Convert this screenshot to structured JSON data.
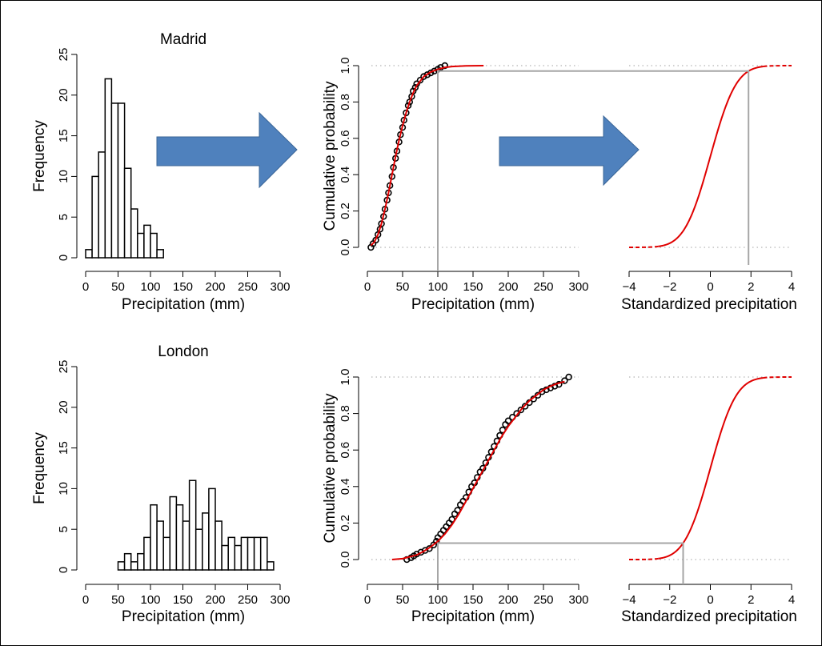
{
  "colors": {
    "bars_fill": "#ffffff",
    "bars_stroke": "#000000",
    "cdf_curve": "#e00000",
    "points": "#000000",
    "guide_lines": "#a6a6a6",
    "dotted_ref": "#b4b4b4",
    "arrow_fill": "#4f81bd",
    "arrow_stroke": "#3b6697"
  },
  "icons": [
    "right-arrow-icon",
    "right-arrow-icon"
  ],
  "chart_data": [
    {
      "type": "bar",
      "title": "Madrid",
      "xlabel": "Precipitation (mm)",
      "ylabel": "Frequency",
      "bin_width": 10,
      "bin_starts": [
        0,
        10,
        20,
        30,
        40,
        50,
        60,
        70,
        80,
        90,
        100,
        110
      ],
      "values": [
        1,
        10,
        13,
        22,
        19,
        19,
        11,
        6,
        3,
        4,
        3,
        1
      ],
      "xlim": [
        0,
        300
      ],
      "ylim": [
        0,
        25
      ],
      "xticks": [
        "0",
        "50",
        "100",
        "150",
        "200",
        "250",
        "300"
      ],
      "yticks": [
        "0",
        "5",
        "10",
        "15",
        "20",
        "25"
      ]
    },
    {
      "type": "scatter",
      "xlabel": "Precipitation (mm)",
      "ylabel": "Cumulative probability",
      "xlim": [
        0,
        300
      ],
      "ylim": [
        0,
        1
      ],
      "xticks": [
        "0",
        "50",
        "100",
        "150",
        "200",
        "250",
        "300"
      ],
      "yticks": [
        "0.0",
        "0.2",
        "0.4",
        "0.6",
        "0.8",
        "1.0"
      ],
      "fitted_curve": {
        "x": [
          5,
          10,
          15,
          20,
          25,
          30,
          35,
          40,
          45,
          50,
          55,
          60,
          65,
          70,
          80,
          90,
          100,
          110,
          120,
          140,
          165
        ],
        "y": [
          0.01,
          0.03,
          0.07,
          0.13,
          0.21,
          0.3,
          0.4,
          0.5,
          0.59,
          0.67,
          0.74,
          0.8,
          0.85,
          0.89,
          0.94,
          0.965,
          0.98,
          0.99,
          0.995,
          0.999,
          1.0
        ]
      },
      "observations": {
        "x": [
          5,
          8,
          12,
          15,
          18,
          20,
          23,
          25,
          28,
          30,
          32,
          35,
          37,
          40,
          42,
          45,
          47,
          50,
          52,
          55,
          58,
          60,
          63,
          65,
          68,
          70,
          75,
          80,
          85,
          90,
          95,
          100,
          104,
          110
        ],
        "y": [
          0.0,
          0.02,
          0.04,
          0.07,
          0.1,
          0.13,
          0.17,
          0.21,
          0.26,
          0.3,
          0.34,
          0.39,
          0.44,
          0.49,
          0.53,
          0.58,
          0.62,
          0.66,
          0.7,
          0.74,
          0.78,
          0.8,
          0.83,
          0.86,
          0.88,
          0.9,
          0.92,
          0.94,
          0.95,
          0.96,
          0.97,
          0.98,
          0.99,
          1.0
        ]
      },
      "guide": {
        "x": 100,
        "y": 0.97
      }
    },
    {
      "type": "line",
      "xlabel": "Standardized precipitation",
      "xlim": [
        -4,
        4
      ],
      "ylim": [
        0,
        1
      ],
      "xticks": [
        "−4",
        "−2",
        "0",
        "2",
        "4"
      ],
      "curve": "standard normal CDF",
      "guide": {
        "x": 1.88,
        "y": 0.97
      }
    },
    {
      "type": "bar",
      "title": "London",
      "xlabel": "Precipitation (mm)",
      "ylabel": "Frequency",
      "bin_width": 10,
      "bin_starts": [
        50,
        60,
        70,
        80,
        90,
        100,
        110,
        120,
        130,
        140,
        150,
        160,
        170,
        180,
        190,
        200,
        210,
        220,
        230,
        240,
        250,
        260,
        270,
        280
      ],
      "values": [
        1,
        2,
        1,
        2,
        4,
        8,
        6,
        4,
        9,
        8,
        6,
        11,
        5,
        7,
        10,
        6,
        3,
        4,
        3,
        4,
        4,
        4,
        4,
        1
      ],
      "xlim": [
        0,
        300
      ],
      "ylim": [
        0,
        25
      ],
      "xticks": [
        "0",
        "50",
        "100",
        "150",
        "200",
        "250",
        "300"
      ],
      "yticks": [
        "0",
        "5",
        "10",
        "15",
        "20",
        "25"
      ]
    },
    {
      "type": "scatter",
      "xlabel": "Precipitation (mm)",
      "ylabel": "Cumulative probability",
      "xlim": [
        0,
        300
      ],
      "ylim": [
        0,
        1
      ],
      "xticks": [
        "0",
        "50",
        "100",
        "150",
        "200",
        "250",
        "300"
      ],
      "yticks": [
        "0.0",
        "0.2",
        "0.4",
        "0.6",
        "0.8",
        "1.0"
      ],
      "fitted_curve": {
        "x": [
          35,
          50,
          60,
          70,
          80,
          90,
          100,
          110,
          120,
          130,
          140,
          150,
          160,
          170,
          180,
          190,
          200,
          210,
          220,
          230,
          240,
          250,
          260,
          270,
          280
        ],
        "y": [
          0.0,
          0.005,
          0.015,
          0.025,
          0.045,
          0.07,
          0.1,
          0.14,
          0.19,
          0.25,
          0.32,
          0.39,
          0.46,
          0.53,
          0.6,
          0.67,
          0.73,
          0.78,
          0.83,
          0.87,
          0.9,
          0.93,
          0.95,
          0.965,
          0.975
        ]
      },
      "observations": {
        "x": [
          56,
          62,
          66,
          70,
          76,
          82,
          88,
          94,
          98,
          100,
          104,
          108,
          112,
          116,
          120,
          124,
          128,
          132,
          136,
          140,
          144,
          148,
          152,
          156,
          160,
          164,
          168,
          172,
          176,
          180,
          184,
          188,
          192,
          196,
          200,
          206,
          212,
          218,
          224,
          230,
          236,
          242,
          248,
          254,
          260,
          266,
          272,
          280,
          286
        ],
        "y": [
          0.0,
          0.01,
          0.02,
          0.03,
          0.04,
          0.05,
          0.06,
          0.08,
          0.1,
          0.12,
          0.14,
          0.16,
          0.18,
          0.2,
          0.22,
          0.25,
          0.27,
          0.3,
          0.32,
          0.34,
          0.37,
          0.4,
          0.42,
          0.45,
          0.48,
          0.5,
          0.53,
          0.56,
          0.59,
          0.62,
          0.65,
          0.68,
          0.71,
          0.74,
          0.76,
          0.78,
          0.8,
          0.82,
          0.84,
          0.86,
          0.88,
          0.9,
          0.92,
          0.93,
          0.94,
          0.95,
          0.96,
          0.98,
          1.0
        ]
      },
      "guide": {
        "x": 100,
        "y": 0.09
      }
    },
    {
      "type": "line",
      "xlabel": "Standardized precipitation",
      "xlim": [
        -4,
        4
      ],
      "ylim": [
        0,
        1
      ],
      "xticks": [
        "−4",
        "−2",
        "0",
        "2",
        "4"
      ],
      "curve": "standard normal CDF",
      "guide": {
        "x": -1.34,
        "y": 0.09
      }
    }
  ]
}
